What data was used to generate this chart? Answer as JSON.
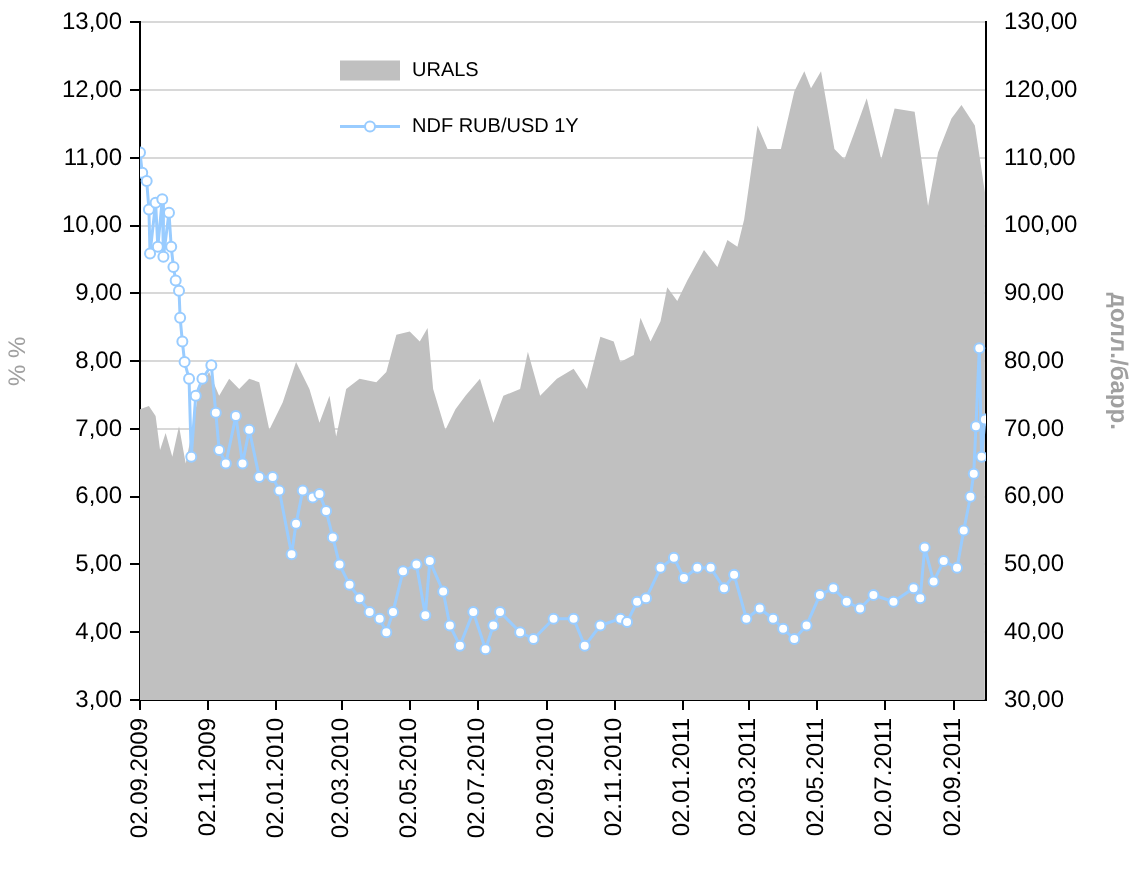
{
  "chart_data": {
    "type": "line",
    "ylabel": "% %",
    "y2label": "долл./барр.",
    "xlim": [
      "2009-09-02",
      "2011-10-01"
    ],
    "xticks": [
      {
        "value": "2009-09-02",
        "label": "02.09.2009"
      },
      {
        "value": "2009-11-02",
        "label": "02.11.2009"
      },
      {
        "value": "2010-01-02",
        "label": "02.01.2010"
      },
      {
        "value": "2010-03-02",
        "label": "02.03.2010"
      },
      {
        "value": "2010-05-02",
        "label": "02.05.2010"
      },
      {
        "value": "2010-07-02",
        "label": "02.07.2010"
      },
      {
        "value": "2010-09-02",
        "label": "02.09.2010"
      },
      {
        "value": "2010-11-02",
        "label": "02.11.2010"
      },
      {
        "value": "2011-01-02",
        "label": "02.01.2011"
      },
      {
        "value": "2011-03-02",
        "label": "02.03.2011"
      },
      {
        "value": "2011-05-02",
        "label": "02.05.2011"
      },
      {
        "value": "2011-07-02",
        "label": "02.07.2011"
      },
      {
        "value": "2011-09-02",
        "label": "02.09.2011"
      }
    ],
    "ylim": [
      3,
      13
    ],
    "yticks": [
      {
        "value": 3,
        "label": "3,00"
      },
      {
        "value": 4,
        "label": "4,00"
      },
      {
        "value": 5,
        "label": "5,00"
      },
      {
        "value": 6,
        "label": "6,00"
      },
      {
        "value": 7,
        "label": "7,00"
      },
      {
        "value": 8,
        "label": "8,00"
      },
      {
        "value": 9,
        "label": "9,00"
      },
      {
        "value": 10,
        "label": "10,00"
      },
      {
        "value": 11,
        "label": "11,00"
      },
      {
        "value": 12,
        "label": "12,00"
      },
      {
        "value": 13,
        "label": "13,00"
      }
    ],
    "y2lim": [
      30,
      130
    ],
    "y2ticks": [
      {
        "value": 30,
        "label": "30,00"
      },
      {
        "value": 40,
        "label": "40,00"
      },
      {
        "value": 50,
        "label": "50,00"
      },
      {
        "value": 60,
        "label": "60,00"
      },
      {
        "value": 70,
        "label": "70,00"
      },
      {
        "value": 80,
        "label": "80,00"
      },
      {
        "value": 90,
        "label": "90,00"
      },
      {
        "value": 100,
        "label": "100,00"
      },
      {
        "value": 110,
        "label": "110,00"
      },
      {
        "value": 120,
        "label": "120,00"
      },
      {
        "value": 130,
        "label": "130,00"
      }
    ],
    "grid": "y",
    "legend": "top",
    "series": [
      {
        "name": "URALS",
        "type": "area",
        "axis": "y2",
        "color": "#c0c0c0",
        "x": [
          "2009-09-02",
          "2009-09-10",
          "2009-09-16",
          "2009-09-20",
          "2009-09-25",
          "2009-10-01",
          "2009-10-07",
          "2009-10-13",
          "2009-10-19",
          "2009-10-25",
          "2009-11-03",
          "2009-11-12",
          "2009-11-21",
          "2009-11-30",
          "2009-12-09",
          "2009-12-18",
          "2009-12-27",
          "2010-01-08",
          "2010-01-20",
          "2010-02-01",
          "2010-02-10",
          "2010-02-19",
          "2010-02-25",
          "2010-03-06",
          "2010-03-18",
          "2010-04-02",
          "2010-04-11",
          "2010-04-20",
          "2010-05-02",
          "2010-05-11",
          "2010-05-18",
          "2010-05-23",
          "2010-06-03",
          "2010-06-12",
          "2010-06-21",
          "2010-07-04",
          "2010-07-16",
          "2010-07-25",
          "2010-08-09",
          "2010-08-16",
          "2010-08-27",
          "2010-09-11",
          "2010-09-26",
          "2010-10-08",
          "2010-10-20",
          "2010-11-01",
          "2010-11-07",
          "2010-11-19",
          "2010-11-25",
          "2010-12-04",
          "2010-12-13",
          "2010-12-19",
          "2010-12-28",
          "2011-01-06",
          "2011-01-21",
          "2011-02-02",
          "2011-02-11",
          "2011-02-20",
          "2011-02-26",
          "2011-03-04",
          "2011-03-10",
          "2011-03-19",
          "2011-03-31",
          "2011-04-12",
          "2011-04-21",
          "2011-04-27",
          "2011-05-06",
          "2011-05-18",
          "2011-05-27",
          "2011-06-05",
          "2011-06-16",
          "2011-06-29",
          "2011-07-11",
          "2011-07-29",
          "2011-08-10",
          "2011-08-19",
          "2011-08-31",
          "2011-09-09",
          "2011-09-21",
          "2011-09-27",
          "2011-09-30"
        ],
        "values": [
          72.9,
          73.4,
          71.9,
          66.9,
          69.4,
          65.9,
          70.4,
          64.9,
          69.9,
          75.9,
          78.4,
          74.9,
          77.4,
          75.9,
          77.4,
          76.9,
          69.9,
          73.9,
          79.9,
          75.9,
          70.9,
          74.9,
          68.9,
          75.9,
          77.4,
          76.9,
          78.4,
          83.9,
          84.4,
          82.9,
          84.9,
          75.9,
          69.9,
          72.9,
          74.9,
          77.4,
          70.9,
          74.9,
          75.9,
          81.4,
          74.9,
          77.4,
          78.9,
          75.9,
          83.6,
          82.9,
          79.9,
          80.9,
          86.4,
          82.9,
          85.9,
          90.9,
          88.9,
          91.9,
          96.4,
          93.9,
          97.9,
          96.9,
          100.9,
          107.8,
          114.8,
          111.3,
          111.3,
          119.8,
          122.8,
          120.3,
          122.8,
          111.3,
          109.8,
          113.8,
          118.8,
          109.8,
          117.3,
          116.8,
          102.9,
          110.8,
          115.8,
          117.8,
          114.8,
          108.3,
          104.9
        ]
      },
      {
        "name": "NDF RUB/USD 1Y",
        "type": "line",
        "color": "#99ccff",
        "marker": "circle",
        "x": [
          "2009-09-02",
          "2009-09-04",
          "2009-09-08",
          "2009-09-10",
          "2009-09-11",
          "2009-09-16",
          "2009-09-18",
          "2009-09-22",
          "2009-09-23",
          "2009-09-28",
          "2009-09-30",
          "2009-10-02",
          "2009-10-04",
          "2009-10-07",
          "2009-10-08",
          "2009-10-10",
          "2009-10-12",
          "2009-10-16",
          "2009-10-18",
          "2009-10-22",
          "2009-10-28",
          "2009-11-05",
          "2009-11-09",
          "2009-11-12",
          "2009-11-18",
          "2009-11-27",
          "2009-12-03",
          "2009-12-09",
          "2009-12-18",
          "2009-12-30",
          "2010-01-05",
          "2010-01-16",
          "2010-01-20",
          "2010-01-26",
          "2010-02-04",
          "2010-02-10",
          "2010-02-16",
          "2010-02-22",
          "2010-02-28",
          "2010-03-09",
          "2010-03-18",
          "2010-03-27",
          "2010-04-05",
          "2010-04-11",
          "2010-04-17",
          "2010-04-26",
          "2010-05-08",
          "2010-05-16",
          "2010-05-20",
          "2010-06-01",
          "2010-06-07",
          "2010-06-16",
          "2010-06-28",
          "2010-07-09",
          "2010-07-16",
          "2010-07-22",
          "2010-08-09",
          "2010-08-21",
          "2010-09-08",
          "2010-09-26",
          "2010-10-06",
          "2010-10-20",
          "2010-11-07",
          "2010-11-13",
          "2010-11-22",
          "2010-11-30",
          "2010-12-13",
          "2010-12-25",
          "2011-01-03",
          "2011-01-15",
          "2011-01-27",
          "2011-02-08",
          "2011-02-17",
          "2011-02-28",
          "2011-03-12",
          "2011-03-24",
          "2011-04-02",
          "2011-04-12",
          "2011-04-23",
          "2011-05-05",
          "2011-05-17",
          "2011-05-29",
          "2011-06-10",
          "2011-06-22",
          "2011-07-10",
          "2011-07-28",
          "2011-08-03",
          "2011-08-07",
          "2011-08-15",
          "2011-08-24",
          "2011-09-05",
          "2011-09-11",
          "2011-09-17",
          "2011-09-20",
          "2011-09-22",
          "2011-09-25",
          "2011-09-27",
          "2011-09-30"
        ],
        "values": [
          11.08,
          10.78,
          10.66,
          10.24,
          9.59,
          10.34,
          9.69,
          10.39,
          9.54,
          10.19,
          9.69,
          9.39,
          9.19,
          9.04,
          8.64,
          8.29,
          7.99,
          7.74,
          6.59,
          7.49,
          7.74,
          7.94,
          7.24,
          6.69,
          6.49,
          7.19,
          6.49,
          6.99,
          6.29,
          6.29,
          6.09,
          5.15,
          5.6,
          6.09,
          5.99,
          6.04,
          5.79,
          5.4,
          5.0,
          4.7,
          4.5,
          4.3,
          4.2,
          4.0,
          4.3,
          4.9,
          5.0,
          4.25,
          5.05,
          4.6,
          4.1,
          3.8,
          4.3,
          3.75,
          4.1,
          4.3,
          4.0,
          3.9,
          4.2,
          4.2,
          3.8,
          4.1,
          4.2,
          4.15,
          4.45,
          4.5,
          4.95,
          5.1,
          4.8,
          4.95,
          4.95,
          4.65,
          4.85,
          4.2,
          4.35,
          4.2,
          4.05,
          3.9,
          4.1,
          4.55,
          4.65,
          4.45,
          4.35,
          4.55,
          4.45,
          4.65,
          4.5,
          5.25,
          4.75,
          5.05,
          4.95,
          5.5,
          6.0,
          6.34,
          7.04,
          8.19,
          6.59,
          7.14
        ]
      }
    ]
  }
}
